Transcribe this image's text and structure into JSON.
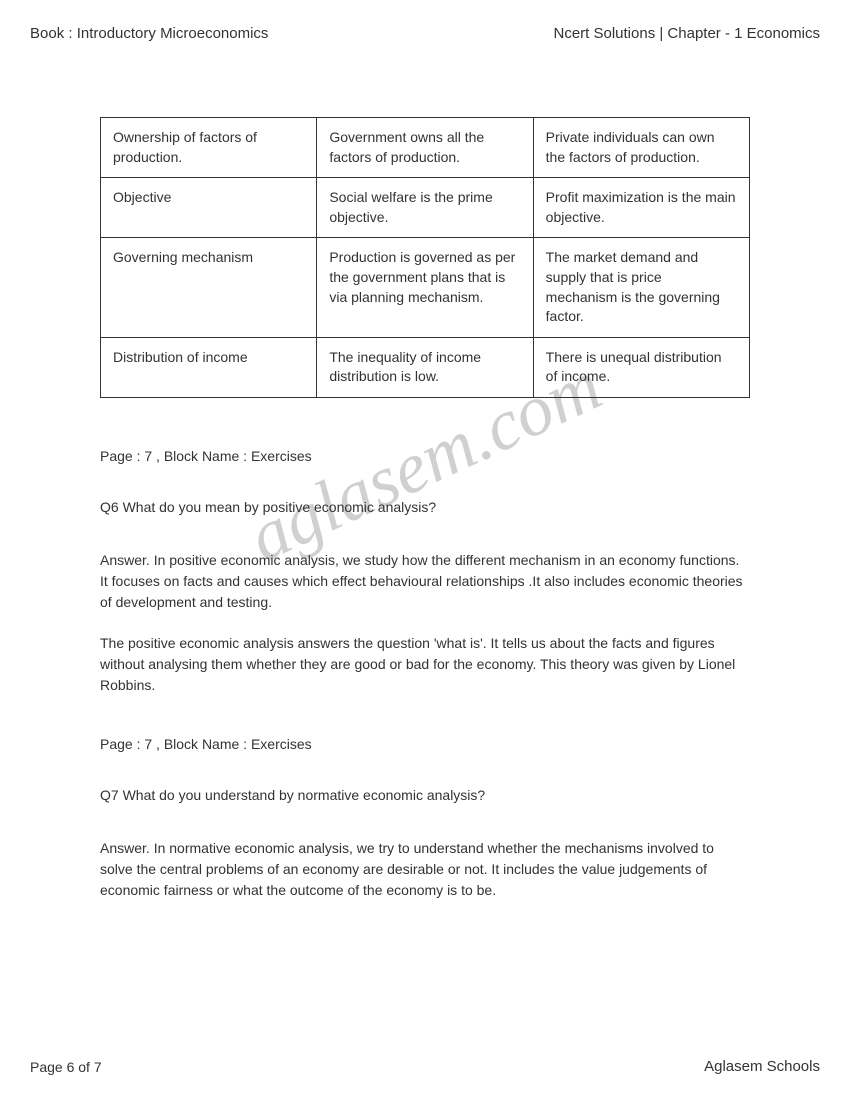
{
  "header": {
    "left": "Book : Introductory Microeconomics",
    "right": "Ncert Solutions | Chapter - 1 Economics"
  },
  "table": {
    "rows": [
      [
        "Ownership of factors of production.",
        "Government owns all the factors of production.",
        "Private individuals can own the factors of production."
      ],
      [
        "Objective",
        "Social welfare is the prime objective.",
        "Profit maximization is the main objective."
      ],
      [
        "Governing mechanism",
        "Production is governed as per the government plans that is via planning mechanism.",
        "The market demand and supply that is price mechanism is the governing factor."
      ],
      [
        "Distribution of income",
        "The inequality of income distribution is low.",
        "There is unequal distribution of income."
      ]
    ]
  },
  "sections": [
    {
      "block_label": "Page : 7 , Block Name : Exercises",
      "question": "Q6 What do you mean by positive economic analysis?",
      "answer_paragraphs": [
        "Answer. In positive economic analysis, we study how the different mechanism in an economy functions. It focuses on facts and causes which effect behavioural relationships .It also includes economic theories of development and testing.",
        "The positive economic analysis answers the question 'what is'. It tells us about the facts and figures without analysing them whether they are good or bad for the economy. This theory was given by Lionel Robbins."
      ]
    },
    {
      "block_label": "Page : 7 , Block Name : Exercises",
      "question": "Q7 What do you understand by normative economic analysis?",
      "answer_paragraphs": [
        "Answer. In normative economic analysis, we try to understand whether the mechanisms involved to solve the central problems of an economy are desirable or not. It includes the value judgements of economic fairness or what the outcome of the economy is to be."
      ]
    }
  ],
  "footer": {
    "left": "Page 6 of 7",
    "right": "Aglasem Schools"
  },
  "watermark": "aglasem.com"
}
